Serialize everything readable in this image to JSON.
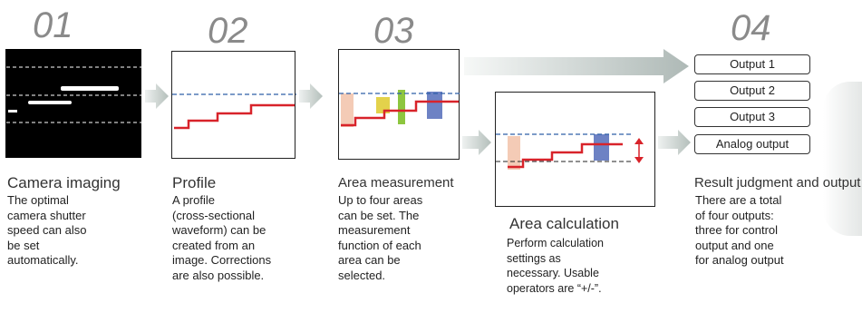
{
  "steps": [
    {
      "number": "01",
      "title": "Camera imaging",
      "description": "The optimal\ncamera shutter\nspeed can also\nbe set\nautomatically."
    },
    {
      "number": "02",
      "title": "Profile",
      "description": "A profile\n(cross-sectional\nwaveform) can be\ncreated from an\nimage. Corrections\nare also possible."
    },
    {
      "number": "03",
      "title": "Area measurement",
      "description": "Up to four areas\ncan be set. The\nmeasurement\nfunction of each\narea can be\nselected."
    },
    {
      "number": "",
      "title": "Area calculation",
      "description": "Perform calculation\nsettings as\nnecessary. Usable\noperators are “+/-”."
    },
    {
      "number": "04",
      "title": "Result judgment and output",
      "description": "There are a total\nof four outputs:\nthree for control\noutput and one\nfor analog output"
    }
  ],
  "outputs": [
    "Output 1",
    "Output 2",
    "Output 3",
    "Analog output"
  ],
  "colors": {
    "step_number": "#8a8a8a",
    "profile_line": "#d8232a",
    "reference_line": "#2e5fa8",
    "area_pink": "#f4cbb6",
    "area_yellow": "#e3d24b",
    "area_green": "#8dc63f",
    "area_blue": "#6d82c4",
    "arrow": "#b9c3c0"
  }
}
